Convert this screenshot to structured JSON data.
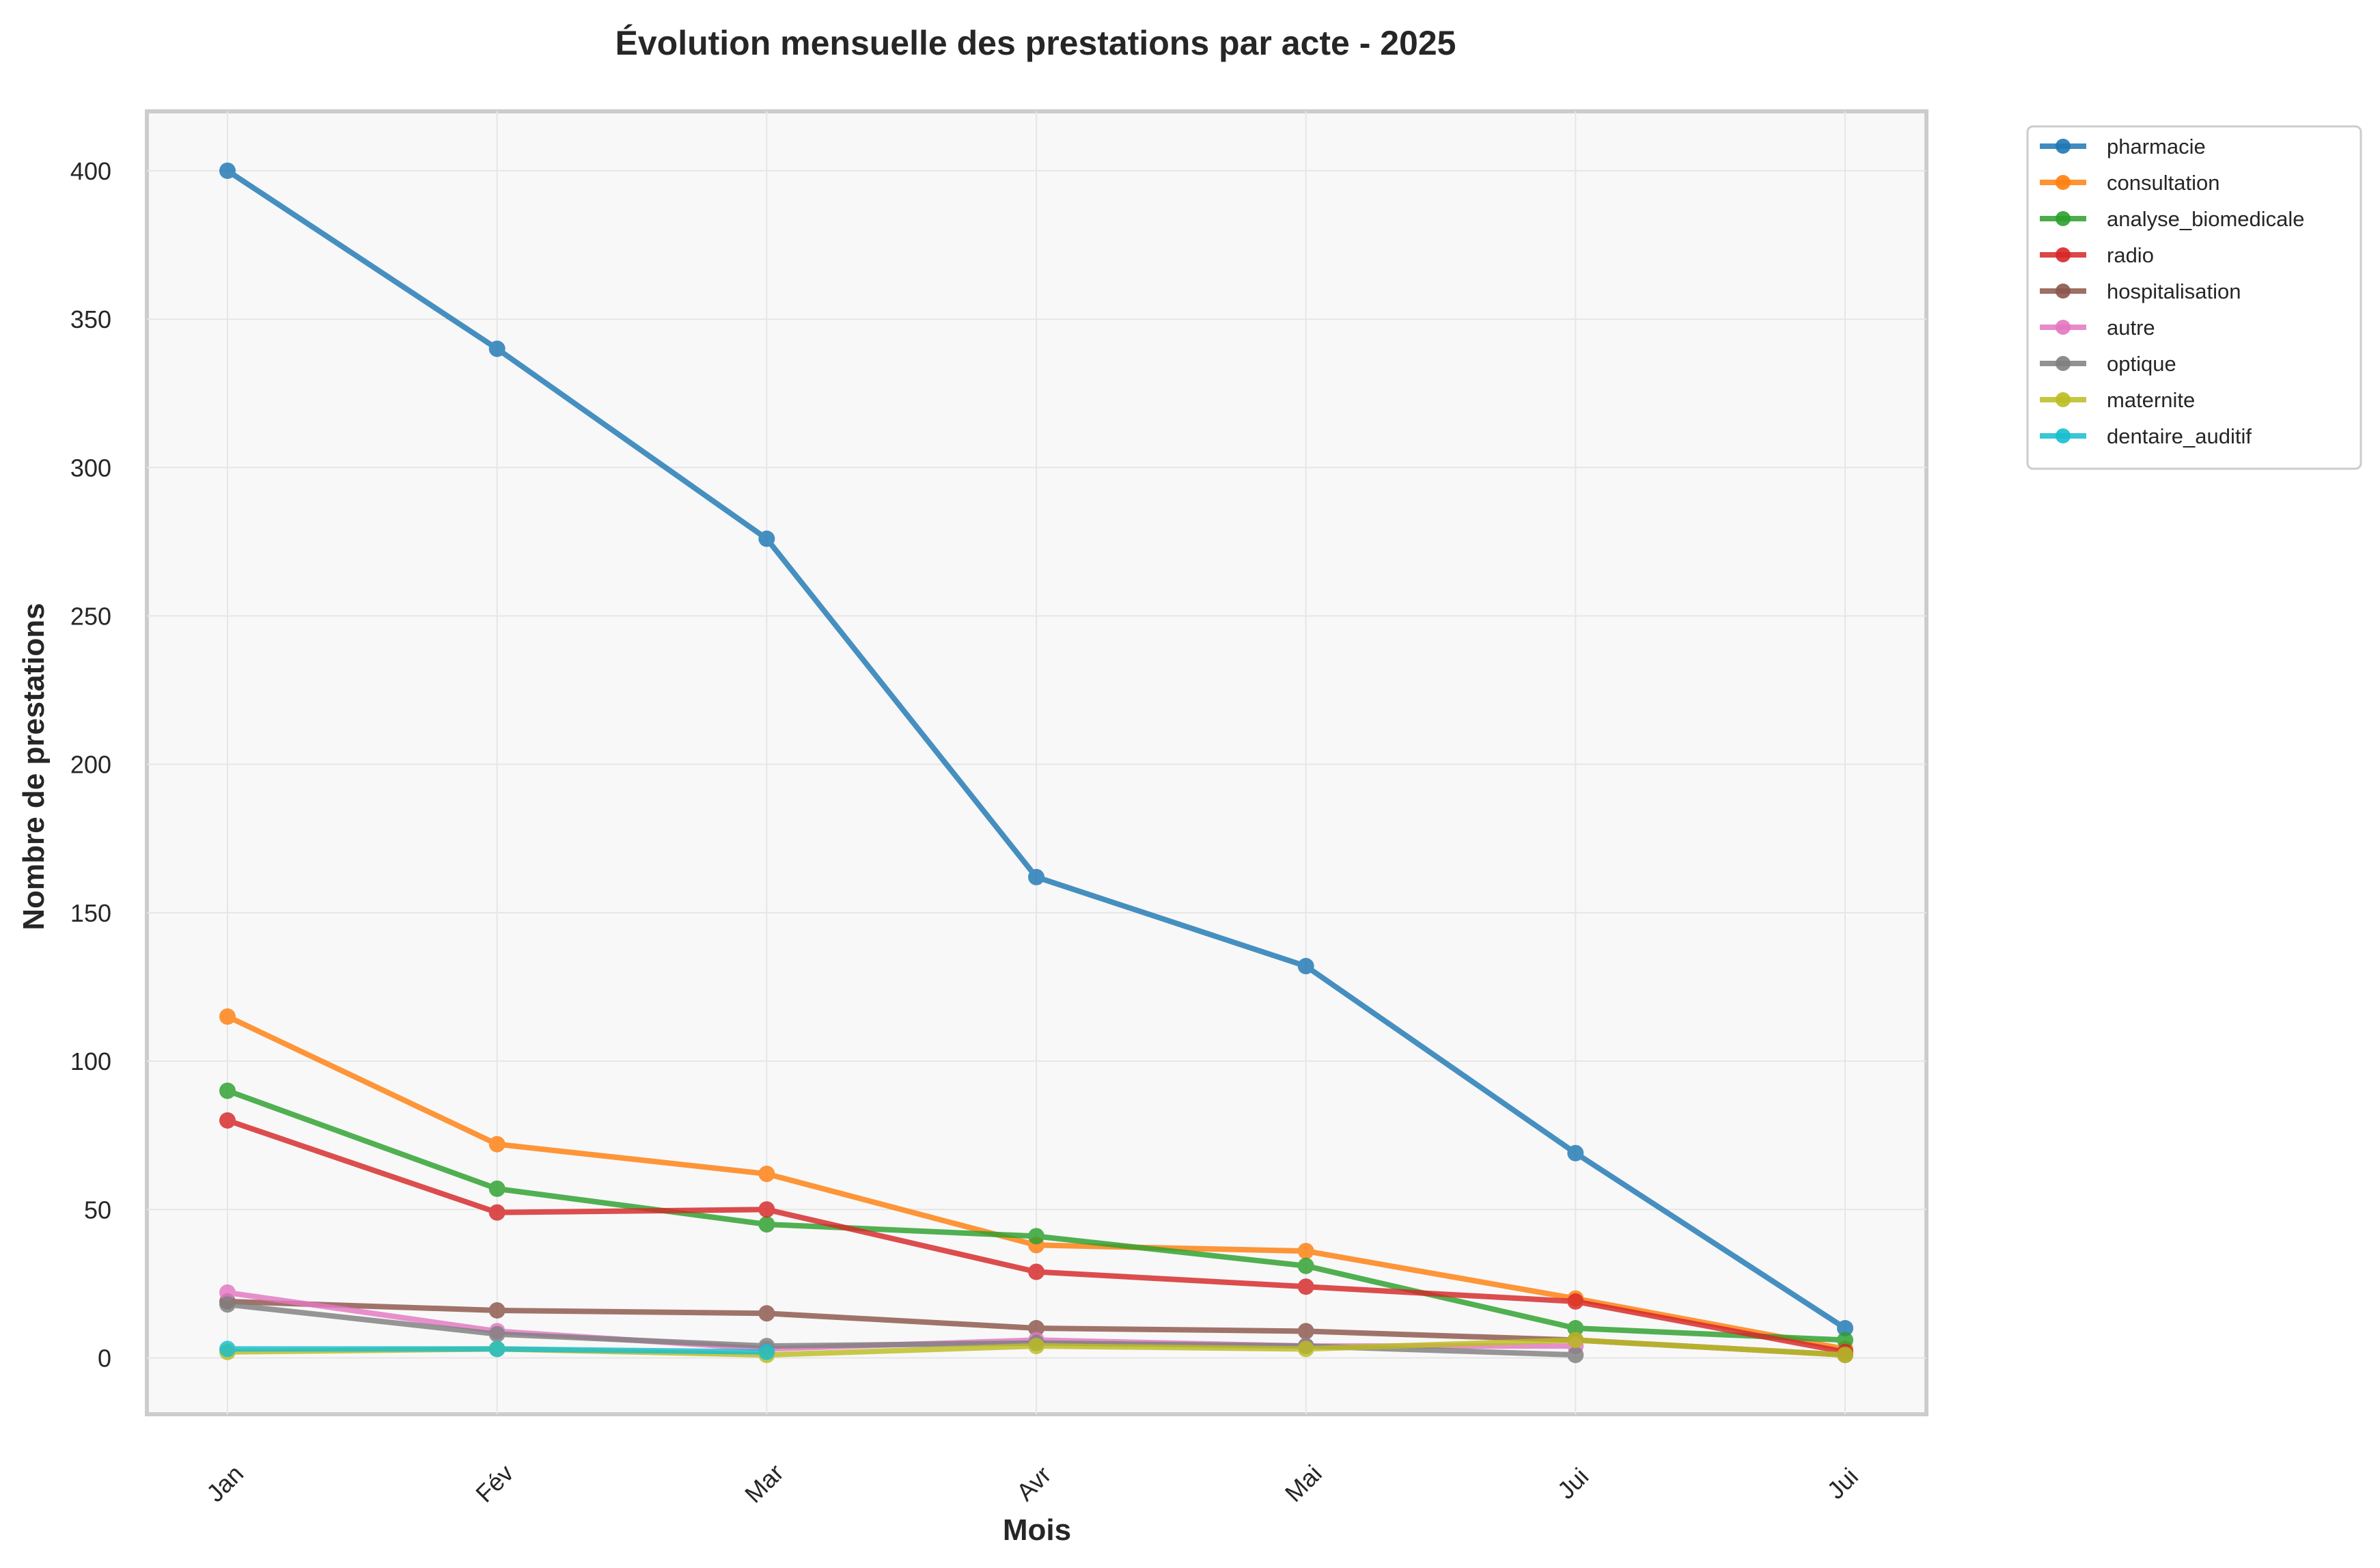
{
  "chart_data": {
    "type": "line",
    "title": "Évolution mensuelle des prestations par acte - 2025",
    "xlabel": "Mois",
    "ylabel": "Nombre de prestations",
    "categories": [
      "Jan",
      "Fév",
      "Mar",
      "Avr",
      "Mai",
      "Jui",
      "Jui"
    ],
    "ylim": [
      -19,
      420
    ],
    "yticks": [
      0,
      50,
      100,
      150,
      200,
      250,
      300,
      350,
      400
    ],
    "grid": true,
    "legend_position": "outside-top-right",
    "series": [
      {
        "name": "pharmacie",
        "color": "#1f77b4",
        "values": [
          400,
          340,
          276,
          162,
          132,
          69,
          10
        ]
      },
      {
        "name": "consultation",
        "color": "#ff7f0e",
        "values": [
          115,
          72,
          62,
          38,
          36,
          20,
          3
        ]
      },
      {
        "name": "analyse_biomedicale",
        "color": "#2ca02c",
        "values": [
          90,
          57,
          45,
          41,
          31,
          10,
          6
        ]
      },
      {
        "name": "radio",
        "color": "#d62728",
        "values": [
          80,
          49,
          50,
          29,
          24,
          19,
          2
        ]
      },
      {
        "name": "hospitalisation",
        "color": "#8c564b",
        "values": [
          19,
          16,
          15,
          10,
          9,
          6,
          1
        ]
      },
      {
        "name": "autre",
        "color": "#e377c2",
        "values": [
          22,
          9,
          3,
          6,
          4,
          4,
          null
        ]
      },
      {
        "name": "optique",
        "color": "#7f7f7f",
        "values": [
          18,
          8,
          4,
          5,
          4,
          1,
          null
        ]
      },
      {
        "name": "maternite",
        "color": "#bcbd22",
        "values": [
          2,
          3,
          1,
          4,
          3,
          6,
          1
        ]
      },
      {
        "name": "dentaire_auditif",
        "color": "#17becf",
        "values": [
          3,
          3,
          2,
          null,
          null,
          null,
          null
        ]
      }
    ]
  }
}
